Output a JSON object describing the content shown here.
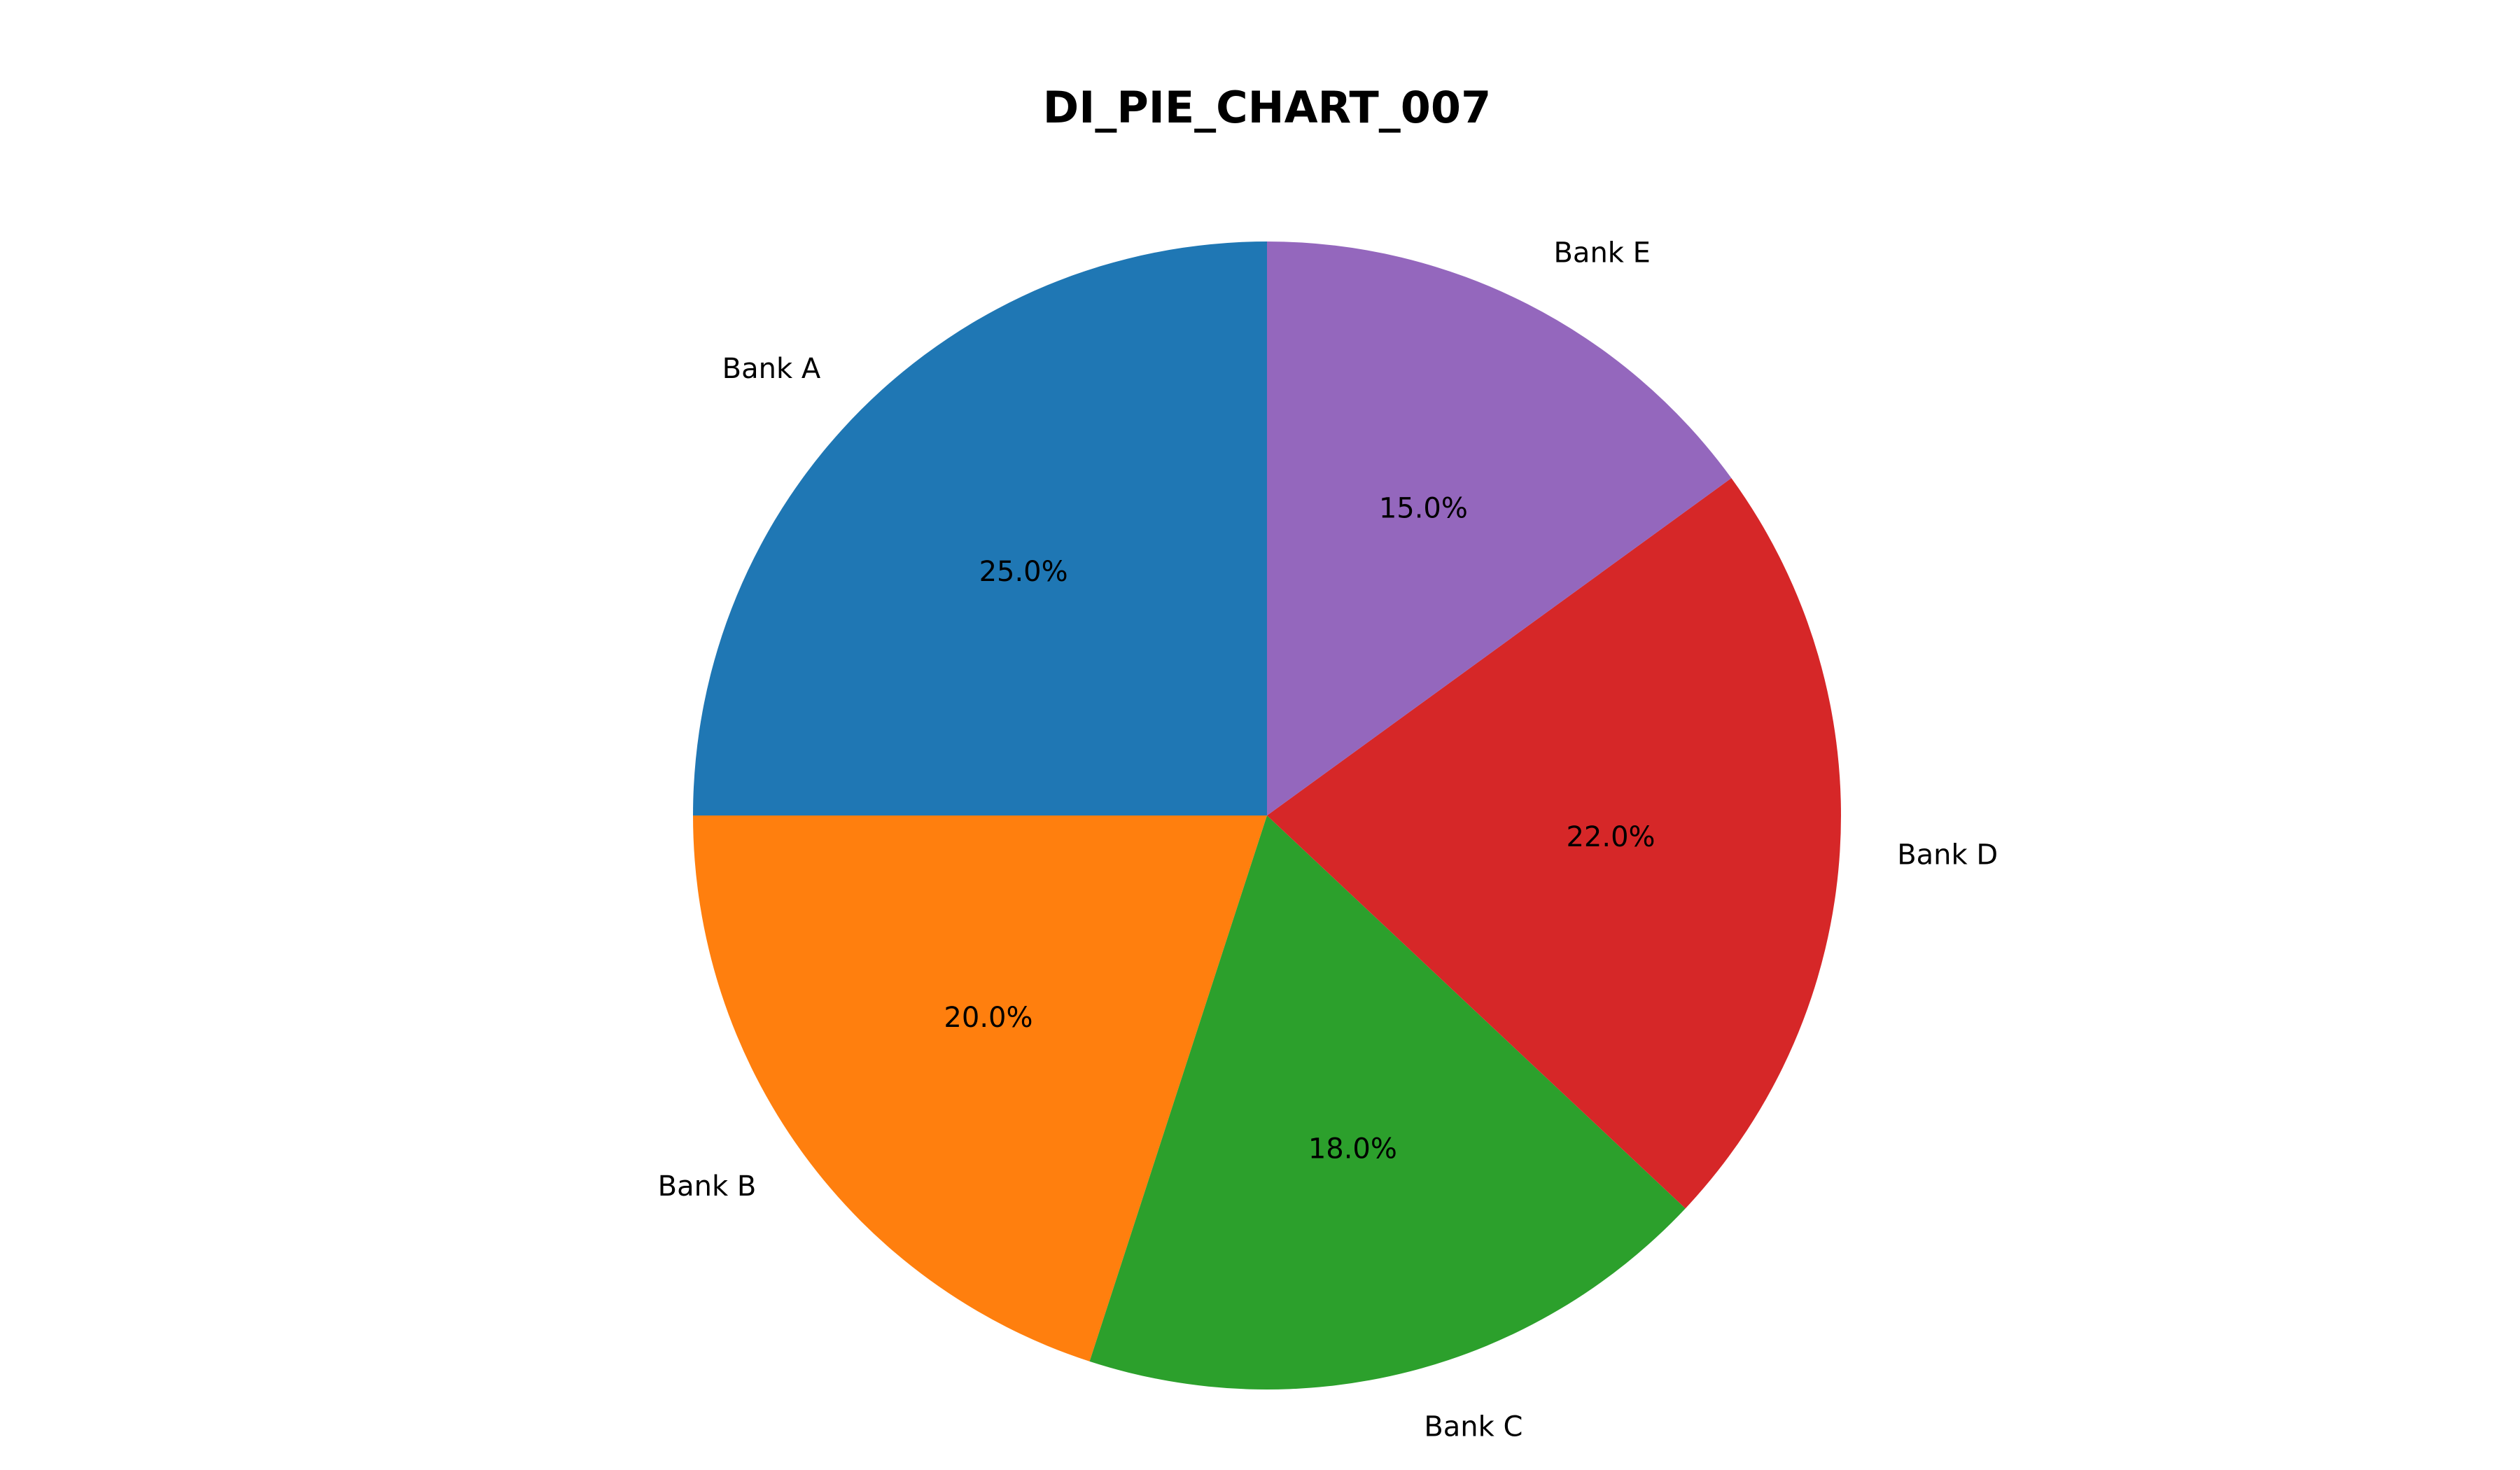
{
  "chart_data": {
    "type": "pie",
    "title": "DI_PIE_CHART_007",
    "start_angle_deg": 90,
    "direction": "counterclockwise",
    "slices": [
      {
        "label": "Bank A",
        "value": 25.0,
        "pct_label": "25.0%",
        "color": "#1f77b4"
      },
      {
        "label": "Bank B",
        "value": 20.0,
        "pct_label": "20.0%",
        "color": "#ff7f0e"
      },
      {
        "label": "Bank C",
        "value": 18.0,
        "pct_label": "18.0%",
        "color": "#2ca02c"
      },
      {
        "label": "Bank D",
        "value": 22.0,
        "pct_label": "22.0%",
        "color": "#d62728"
      },
      {
        "label": "Bank E",
        "value": 15.0,
        "pct_label": "15.0%",
        "color": "#9467bd"
      }
    ]
  }
}
